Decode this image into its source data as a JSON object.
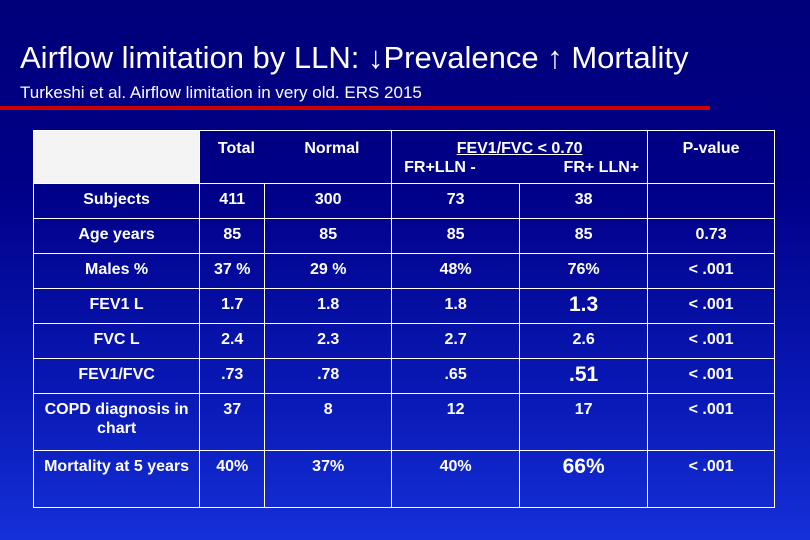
{
  "title": "Airflow limitation by LLN: ↓Prevalence ↑ Mortality",
  "subtitle": "Turkeshi et al.  Airflow limitation in very old. ERS 2015",
  "colors": {
    "background": "#000088",
    "accent_rule": "#cc0000",
    "text": "#ffffff"
  },
  "table": {
    "headers": {
      "total": "Total",
      "normal": "Normal",
      "fev_group": "FEV1/FVC < 0.70",
      "fev_minus": "FR+LLN -",
      "fev_plus": "FR+ LLN+",
      "pvalue": "P-value"
    },
    "rows": [
      {
        "label": "Subjects",
        "total": "411",
        "normal": "300",
        "minus": "73",
        "plus": "38",
        "p": ""
      },
      {
        "label": "Age years",
        "total": "85",
        "normal": "85",
        "minus": "85",
        "plus": "85",
        "p": "0.73"
      },
      {
        "label": "Males %",
        "total": "37 %",
        "normal": "29 %",
        "minus": "48%",
        "plus": "76%",
        "p": "< .001"
      },
      {
        "label": "FEV1 L",
        "total": "1.7",
        "normal": "1.8",
        "minus": "1.8",
        "plus": "1.3",
        "p": "< .001"
      },
      {
        "label": "FVC L",
        "total": "2.4",
        "normal": "2.3",
        "minus": "2.7",
        "plus": "2.6",
        "p": "< .001"
      },
      {
        "label": "FEV1/FVC",
        "total": ".73",
        "normal": ".78",
        "minus": ".65",
        "plus": ".51",
        "p": "< .001"
      },
      {
        "label": "COPD diagnosis in chart",
        "total": "37",
        "normal": "8",
        "minus": "12",
        "plus": "17",
        "p": "< .001"
      },
      {
        "label": "Mortality at 5 years",
        "total": "40%",
        "normal": "37%",
        "minus": "40%",
        "plus": "66%",
        "p": "< .001"
      }
    ]
  }
}
